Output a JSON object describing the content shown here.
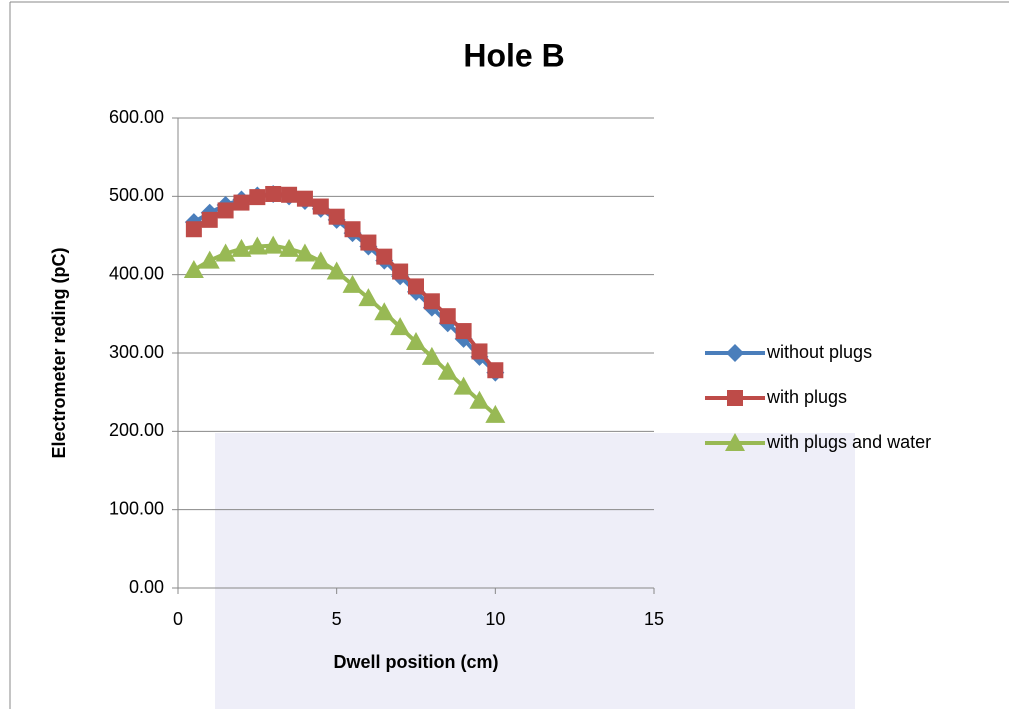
{
  "chart_data": {
    "type": "line",
    "title": "Hole B",
    "x_label": "Dwell position (cm)",
    "y_label": "Electrometer reding (pC)",
    "x": [
      0.5,
      1,
      1.5,
      2,
      2.5,
      3,
      3.5,
      4,
      4.5,
      5,
      5.5,
      6,
      6.5,
      7,
      7.5,
      8,
      8.5,
      9,
      9.5,
      10
    ],
    "series": [
      {
        "name": "without plugs",
        "color": "#4a7ebb",
        "marker": "diamond",
        "values": [
          467,
          479,
          489,
          496,
          501,
          503,
          500,
          494,
          484,
          470,
          453,
          436,
          418,
          398,
          378,
          358,
          338,
          318,
          295,
          275
        ]
      },
      {
        "name": "with plugs",
        "color": "#be4b48",
        "marker": "square",
        "values": [
          458,
          470,
          482,
          492,
          499,
          503,
          502,
          497,
          487,
          474,
          458,
          441,
          423,
          404,
          385,
          366,
          347,
          328,
          302,
          278
        ]
      },
      {
        "name": "with plugs and water",
        "color": "#98b954",
        "marker": "triangle",
        "values": [
          406,
          418,
          427,
          433,
          436,
          437,
          433,
          427,
          417,
          404,
          387,
          370,
          352,
          333,
          314,
          295,
          276,
          257,
          239,
          221
        ]
      }
    ],
    "xlim": [
      0,
      15
    ],
    "xticks": [
      0,
      5,
      10,
      15
    ],
    "ylim": [
      0,
      600
    ],
    "yticks": [
      {
        "value": 0,
        "label": "0.00"
      },
      {
        "value": 100,
        "label": "100.00"
      },
      {
        "value": 200,
        "label": "200.00"
      },
      {
        "value": 300,
        "label": "300.00"
      },
      {
        "value": 400,
        "label": "400.00"
      },
      {
        "value": 500,
        "label": "500.00"
      },
      {
        "value": 600,
        "label": "600.00"
      }
    ],
    "grid": true,
    "legend": "right"
  }
}
